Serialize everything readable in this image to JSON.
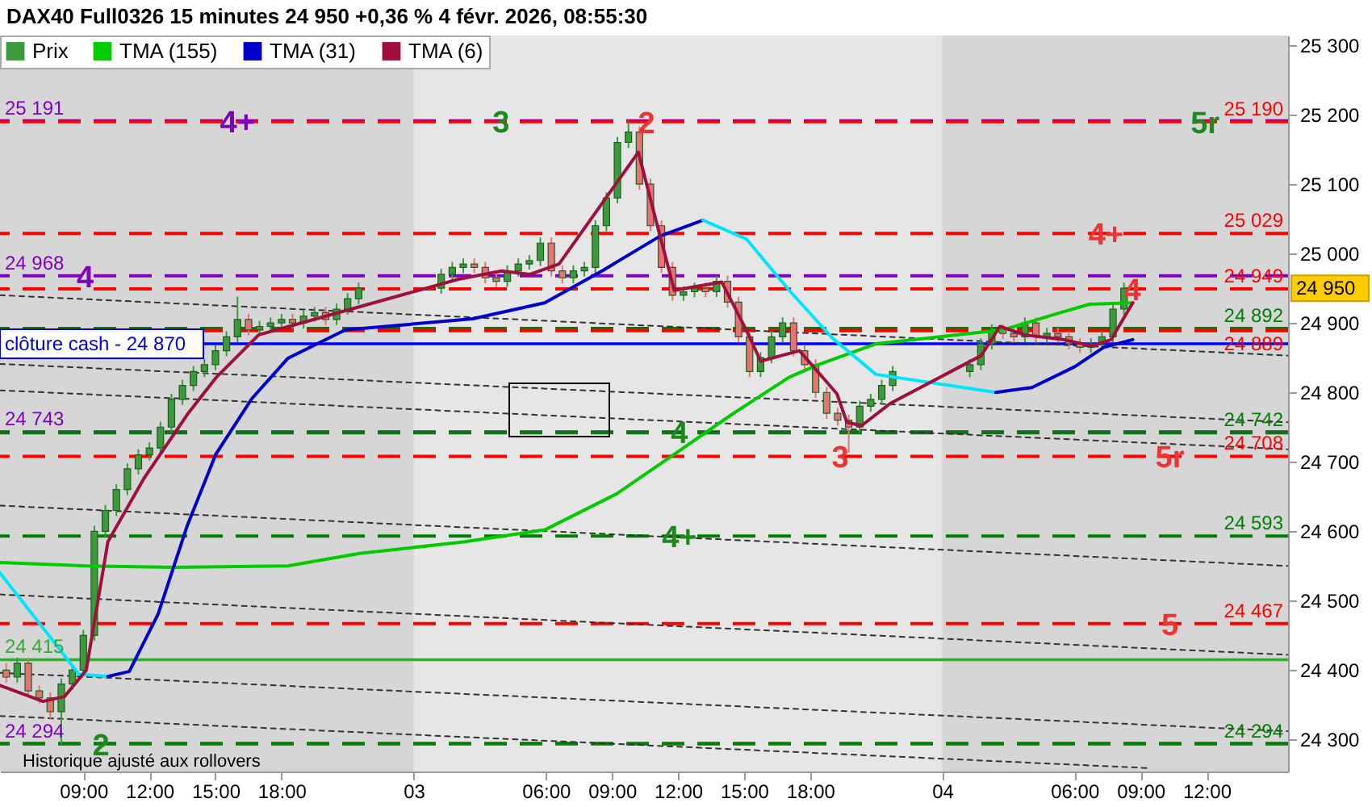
{
  "chart_data": {
    "type": "candlestick",
    "title": "DAX40 Full0326 15 minutes 24 950 +0,36 % 4 févr. 2026, 08:55:30",
    "legend": "top left",
    "xlim": [
      "2026-02-02T05:13",
      "2026-02-04T15:42"
    ],
    "xticks": [
      {
        "value": "2026-02-02T09:00",
        "label": "09:00"
      },
      {
        "value": "2026-02-02T12:00",
        "label": "12:00"
      },
      {
        "value": "2026-02-02T15:00",
        "label": "15:00"
      },
      {
        "value": "2026-02-02T18:00",
        "label": "18:00"
      },
      {
        "value": "2026-02-03",
        "label": "03"
      },
      {
        "value": "2026-02-03T06:00",
        "label": "06:00"
      },
      {
        "value": "2026-02-03T09:00",
        "label": "09:00"
      },
      {
        "value": "2026-02-03T12:00",
        "label": "12:00"
      },
      {
        "value": "2026-02-03T15:00",
        "label": "15:00"
      },
      {
        "value": "2026-02-03T18:00",
        "label": "18:00"
      },
      {
        "value": "2026-02-04",
        "label": "04"
      },
      {
        "value": "2026-02-04T06:00",
        "label": "06:00"
      },
      {
        "value": "2026-02-04T09:00",
        "label": "09:00"
      },
      {
        "value": "2026-02-04T12:00",
        "label": "12:00"
      }
    ],
    "ylim": [
      24254,
      25314
    ],
    "yticks": [
      {
        "value": 24300,
        "label": "24 300"
      },
      {
        "value": 24400,
        "label": "24 400"
      },
      {
        "value": 24500,
        "label": "24 500"
      },
      {
        "value": 24600,
        "label": "24 600"
      },
      {
        "value": 24700,
        "label": "24 700"
      },
      {
        "value": 24800,
        "label": "24 800"
      },
      {
        "value": 24900,
        "label": "24 900"
      },
      {
        "value": 25000,
        "label": "25 000"
      },
      {
        "value": 25100,
        "label": "25 100"
      },
      {
        "value": 25200,
        "label": "25 200"
      },
      {
        "value": 25300,
        "label": "25 300"
      }
    ],
    "bands": [
      {
        "axis": "x",
        "from": "2026-02-03",
        "to": "2026-02-04",
        "color": "#e6e6e6"
      }
    ],
    "series": [
      {
        "name": "Prix",
        "x": [
          "2026-02-02T05:30",
          "2026-02-02T06:00",
          "2026-02-02T06:30",
          "2026-02-02T07:00",
          "2026-02-02T07:30",
          "2026-02-02T08:00",
          "2026-02-02T08:30",
          "2026-02-02T09:00",
          "2026-02-02T09:30",
          "2026-02-02T10:00",
          "2026-02-02T10:30",
          "2026-02-02T11:00",
          "2026-02-02T11:30",
          "2026-02-02T12:00",
          "2026-02-02T12:30",
          "2026-02-02T13:00",
          "2026-02-02T13:30",
          "2026-02-02T14:00",
          "2026-02-02T14:30",
          "2026-02-02T15:00",
          "2026-02-02T15:30",
          "2026-02-02T16:00",
          "2026-02-02T16:30",
          "2026-02-02T17:00",
          "2026-02-02T17:30",
          "2026-02-02T18:00",
          "2026-02-02T18:30",
          "2026-02-02T19:00",
          "2026-02-02T19:30",
          "2026-02-02T20:00",
          "2026-02-02T20:30",
          "2026-02-02T21:00",
          "2026-02-02T21:30",
          "2026-02-03T01:15",
          "2026-02-03T01:45",
          "2026-02-03T02:15",
          "2026-02-03T02:45",
          "2026-02-03T03:15",
          "2026-02-03T03:45",
          "2026-02-03T04:15",
          "2026-02-03T04:45",
          "2026-02-03T05:15",
          "2026-02-03T05:45",
          "2026-02-03T06:15",
          "2026-02-03T06:45",
          "2026-02-03T07:15",
          "2026-02-03T07:45",
          "2026-02-03T08:15",
          "2026-02-03T08:45",
          "2026-02-03T09:15",
          "2026-02-03T09:45",
          "2026-02-03T10:15",
          "2026-02-03T10:45",
          "2026-02-03T11:15",
          "2026-02-03T11:45",
          "2026-02-03T12:15",
          "2026-02-03T12:45",
          "2026-02-03T13:15",
          "2026-02-03T13:45",
          "2026-02-03T14:15",
          "2026-02-03T14:45",
          "2026-02-03T15:15",
          "2026-02-03T15:45",
          "2026-02-03T16:15",
          "2026-02-03T16:45",
          "2026-02-03T17:15",
          "2026-02-03T17:45",
          "2026-02-03T18:15",
          "2026-02-03T18:45",
          "2026-02-03T19:15",
          "2026-02-03T19:45",
          "2026-02-03T20:15",
          "2026-02-03T20:45",
          "2026-02-03T21:15",
          "2026-02-03T21:45",
          "2026-02-04T01:15",
          "2026-02-04T01:45",
          "2026-02-04T02:15",
          "2026-02-04T02:45",
          "2026-02-04T03:15",
          "2026-02-04T03:45",
          "2026-02-04T04:15",
          "2026-02-04T04:45",
          "2026-02-04T05:15",
          "2026-02-04T05:45",
          "2026-02-04T06:15",
          "2026-02-04T06:45",
          "2026-02-04T07:15",
          "2026-02-04T07:45",
          "2026-02-04T08:15"
        ],
        "colors": [
          "#e57373",
          "#3c9a3c",
          "#e57373",
          "#e57373",
          "#e57373",
          "#3c9a3c",
          "#3c9a3c",
          "#3c9a3c",
          "#3c9a3c",
          "#3c9a3c",
          "#3c9a3c",
          "#3c9a3c",
          "#3c9a3c",
          "#3c9a3c",
          "#3c9a3c",
          "#3c9a3c",
          "#3c9a3c",
          "#3c9a3c",
          "#3c9a3c",
          "#3c9a3c",
          "#3c9a3c",
          "#3c9a3c",
          "#e57373",
          "#3c9a3c",
          "#3c9a3c",
          "#3c9a3c",
          "#e57373",
          "#3c9a3c",
          "#3c9a3c",
          "#e57373",
          "#3c9a3c",
          "#3c9a3c",
          "#3c9a3c",
          "#3c9a3c",
          "#3c9a3c",
          "#3c9a3c",
          "#e57373",
          "#e57373",
          "#e57373",
          "#3c9a3c",
          "#3c9a3c",
          "#3c9a3c",
          "#3c9a3c",
          "#e57373",
          "#e57373",
          "#3c9a3c",
          "#3c9a3c",
          "#3c9a3c",
          "#3c9a3c",
          "#3c9a3c",
          "#3c9a3c",
          "#e57373",
          "#e57373",
          "#e57373",
          "#e57373",
          "#3c9a3c",
          "#3c9a3c",
          "#e57373",
          "#3c9a3c",
          "#e57373",
          "#e57373",
          "#e57373",
          "#3c9a3c",
          "#3c9a3c",
          "#3c9a3c",
          "#e57373",
          "#e57373",
          "#e57373",
          "#e57373",
          "#e57373",
          "#e57373",
          "#3c9a3c",
          "#3c9a3c",
          "#3c9a3c",
          "#3c9a3c",
          "#3c9a3c",
          "#3c9a3c",
          "#3c9a3c",
          "#e57373",
          "#e57373",
          "#3c9a3c",
          "#e57373",
          "#3c9a3c",
          "#e57373",
          "#e57373",
          "#e57373",
          "#3c9a3c",
          "#3c9a3c",
          "#3c9a3c",
          "#3c9a3c"
        ],
        "ohlc": [
          [
            24400,
            24410,
            24382,
            24390
          ],
          [
            24390,
            24418,
            24382,
            24410
          ],
          [
            24410,
            24418,
            24362,
            24370
          ],
          [
            24370,
            24378,
            24352,
            24360
          ],
          [
            24360,
            24368,
            24330,
            24340
          ],
          [
            24340,
            24388,
            24293,
            24380
          ],
          [
            24380,
            24408,
            24372,
            24400
          ],
          [
            24400,
            24458,
            24392,
            24450
          ],
          [
            24450,
            24608,
            24442,
            24600
          ],
          [
            24600,
            24638,
            24592,
            24630
          ],
          [
            24630,
            24668,
            24622,
            24660
          ],
          [
            24660,
            24698,
            24652,
            24690
          ],
          [
            24690,
            24718,
            24682,
            24710
          ],
          [
            24710,
            24728,
            24702,
            24720
          ],
          [
            24720,
            24758,
            24712,
            24750
          ],
          [
            24750,
            24798,
            24742,
            24790
          ],
          [
            24790,
            24818,
            24782,
            24810
          ],
          [
            24810,
            24838,
            24802,
            24830
          ],
          [
            24830,
            24848,
            24822,
            24840
          ],
          [
            24840,
            24868,
            24832,
            24860
          ],
          [
            24860,
            24888,
            24852,
            24880
          ],
          [
            24880,
            24938,
            24872,
            24905
          ],
          [
            24905,
            24913,
            24882,
            24890
          ],
          [
            24890,
            24903,
            24882,
            24895
          ],
          [
            24895,
            24908,
            24887,
            24900
          ],
          [
            24900,
            24913,
            24892,
            24905
          ],
          [
            24905,
            24913,
            24892,
            24900
          ],
          [
            24900,
            24918,
            24892,
            24910
          ],
          [
            24910,
            24923,
            24902,
            24915
          ],
          [
            24915,
            24923,
            24897,
            24905
          ],
          [
            24905,
            24928,
            24897,
            24920
          ],
          [
            24920,
            24943,
            24912,
            24935
          ],
          [
            24935,
            24958,
            24927,
            24950
          ],
          [
            24950,
            24978,
            24942,
            24970
          ],
          [
            24970,
            24988,
            24962,
            24980
          ],
          [
            24980,
            24993,
            24972,
            24985
          ],
          [
            24985,
            24993,
            24972,
            24980
          ],
          [
            24980,
            24988,
            24957,
            24965
          ],
          [
            24965,
            24973,
            24952,
            24960
          ],
          [
            24960,
            24983,
            24952,
            24975
          ],
          [
            24975,
            24993,
            24967,
            24985
          ],
          [
            24985,
            24998,
            24977,
            24990
          ],
          [
            24990,
            25023,
            24982,
            25015
          ],
          [
            25015,
            25023,
            24967,
            24975
          ],
          [
            24975,
            24983,
            24957,
            24965
          ],
          [
            24965,
            24983,
            24957,
            24975
          ],
          [
            24975,
            24988,
            24967,
            24980
          ],
          [
            24980,
            25048,
            24972,
            25040
          ],
          [
            25040,
            25088,
            25032,
            25080
          ],
          [
            25080,
            25168,
            25072,
            25160
          ],
          [
            25160,
            25190,
            25152,
            25175
          ],
          [
            25175,
            25183,
            25092,
            25100
          ],
          [
            25100,
            25108,
            25032,
            25040
          ],
          [
            25040,
            25048,
            24972,
            24980
          ],
          [
            24980,
            24988,
            24932,
            24940
          ],
          [
            24940,
            24953,
            24932,
            24945
          ],
          [
            24945,
            24958,
            24937,
            24950
          ],
          [
            24950,
            24958,
            24937,
            24945
          ],
          [
            24945,
            24968,
            24937,
            24960
          ],
          [
            24960,
            24968,
            24922,
            24930
          ],
          [
            24930,
            24938,
            24872,
            24880
          ],
          [
            24880,
            24888,
            24822,
            24830
          ],
          [
            24830,
            24858,
            24822,
            24850
          ],
          [
            24850,
            24888,
            24842,
            24880
          ],
          [
            24880,
            24908,
            24872,
            24900
          ],
          [
            24900,
            24908,
            24852,
            24860
          ],
          [
            24860,
            24868,
            24832,
            24840
          ],
          [
            24840,
            24848,
            24792,
            24800
          ],
          [
            24800,
            24808,
            24762,
            24770
          ],
          [
            24770,
            24778,
            24752,
            24760
          ],
          [
            24760,
            24768,
            24713,
            24750
          ],
          [
            24750,
            24788,
            24742,
            24780
          ],
          [
            24780,
            24798,
            24772,
            24790
          ],
          [
            24790,
            24818,
            24782,
            24810
          ],
          [
            24810,
            24838,
            24802,
            24830
          ],
          [
            24830,
            24848,
            24822,
            24840
          ],
          [
            24840,
            24878,
            24832,
            24870
          ],
          [
            24870,
            24898,
            24862,
            24890
          ],
          [
            24890,
            24898,
            24877,
            24885
          ],
          [
            24885,
            24893,
            24872,
            24880
          ],
          [
            24880,
            24908,
            24872,
            24900
          ],
          [
            24900,
            24908,
            24872,
            24880
          ],
          [
            24880,
            24893,
            24872,
            24885
          ],
          [
            24885,
            24893,
            24872,
            24880
          ],
          [
            24880,
            24888,
            24862,
            24870
          ],
          [
            24870,
            24878,
            24857,
            24865
          ],
          [
            24865,
            24878,
            24857,
            24870
          ],
          [
            24870,
            24888,
            24862,
            24880
          ],
          [
            24880,
            24928,
            24872,
            24920
          ],
          [
            24920,
            24958,
            24912,
            24950
          ]
        ]
      },
      {
        "name": "TMA (155)",
        "type": "line",
        "color": "#00cc00",
        "x": [
          "2026-02-02T05:13",
          "2026-02-02T09:08",
          "2026-02-02T13:03",
          "2026-02-02T18:17",
          "2026-02-02T21:33",
          "2026-02-03T02:20",
          "2026-02-03T05:57",
          "2026-02-03T09:13",
          "2026-02-03T11:50",
          "2026-02-03T14:26",
          "2026-02-03T17:03",
          "2026-02-03T18:22",
          "2026-02-03T20:59",
          "2026-02-04T02:45",
          "2026-02-04T05:22",
          "2026-02-04T06:41",
          "2026-02-04T08:39"
        ],
        "values": [
          24555,
          24550,
          24548,
          24550,
          24568,
          24585,
          24602,
          24654,
          24711,
          24768,
          24822,
          24840,
          24870,
          24890,
          24915,
          24927,
          24929
        ]
      },
      {
        "type": "line",
        "color": "#00e5ff",
        "x": [
          "2026-02-02T05:13",
          "2026-02-02T07:10",
          "2026-02-02T08:48",
          "2026-02-02T10:07"
        ],
        "values": [
          24540,
          24461,
          24394,
          24391
        ]
      },
      {
        "name": "TMA (31)",
        "type": "line",
        "color": "#0000cc",
        "x": [
          "2026-02-02T10:07",
          "2026-02-02T11:05",
          "2026-02-02T12:24",
          "2026-02-02T13:43",
          "2026-02-02T15:01",
          "2026-02-02T16:39",
          "2026-02-02T18:17",
          "2026-02-02T20:54",
          "2026-02-03T02:41",
          "2026-02-03T05:57",
          "2026-02-03T08:33",
          "2026-02-03T11:11",
          "2026-02-03T13:08"
        ],
        "values": [
          24391,
          24398,
          24481,
          24608,
          24711,
          24791,
          24849,
          24890,
          24906,
          24929,
          24975,
          25025,
          25048
        ]
      },
      {
        "type": "line",
        "color": "#00e5ff",
        "x": [
          "2026-02-03T13:08",
          "2026-02-03T15:06",
          "2026-02-03T17:03",
          "2026-02-03T19:01",
          "2026-02-03T20:59",
          "2026-02-04T02:26"
        ],
        "values": [
          25048,
          25021,
          24947,
          24878,
          24826,
          24800
        ]
      },
      {
        "type": "line",
        "color": "#0000cc",
        "x": [
          "2026-02-04T02:26",
          "2026-02-04T04:04",
          "2026-02-04T06:01",
          "2026-02-04T07:20",
          "2026-02-04T08:39"
        ],
        "values": [
          24800,
          24807,
          24837,
          24865,
          24876
        ]
      },
      {
        "name": "TMA (6)",
        "type": "line",
        "color": "#a0103c",
        "x": [
          "2026-02-02T05:13",
          "2026-02-02T07:10",
          "2026-02-02T08:09",
          "2026-02-02T09:08",
          "2026-02-02T10:07",
          "2026-02-02T11:45",
          "2026-02-02T13:43",
          "2026-02-02T15:01",
          "2026-02-02T16:58",
          "2026-02-02T19:35",
          "2026-02-03T02:02",
          "2026-02-03T03:59",
          "2026-02-03T05:17",
          "2026-02-03T06:36",
          "2026-02-03T07:54",
          "2026-02-03T10:12",
          "2026-02-03T10:59",
          "2026-02-03T11:50",
          "2026-02-03T13:59",
          "2026-02-03T15:06",
          "2026-02-03T15:45",
          "2026-02-03T17:31",
          "2026-02-03T19:13",
          "2026-02-03T19:40",
          "2026-02-03T20:20",
          "2026-02-03T21:38",
          "2026-02-04T01:46",
          "2026-02-04T02:37",
          "2026-02-04T03:44",
          "2026-02-04T05:30",
          "2026-02-04T06:49",
          "2026-02-04T07:40",
          "2026-02-04T08:39"
        ],
        "values": [
          24378,
          24355,
          24362,
          24400,
          24585,
          24676,
          24768,
          24821,
          24883,
          24906,
          24963,
          24975,
          24970,
          24985,
          25043,
          25146,
          25050,
          24947,
          24959,
          24890,
          24845,
          24860,
          24798,
          24757,
          24752,
          24784,
          24853,
          24895,
          24883,
          24876,
          24867,
          24876,
          24929
        ]
      },
      {
        "type": "line",
        "color": "#333333",
        "line_style": "dotted",
        "x": [
          "2026-02-02T05:13",
          "2026-02-04T15:42"
        ],
        "values": [
          24940,
          24853
        ]
      },
      {
        "type": "line",
        "color": "#333333",
        "line_style": "dotted",
        "x": [
          "2026-02-02T05:13",
          "2026-02-04T15:42"
        ],
        "values": [
          24841,
          24757
        ]
      },
      {
        "type": "line",
        "color": "#333333",
        "line_style": "dotted",
        "x": [
          "2026-02-02T05:13",
          "2026-02-04T15:42"
        ],
        "values": [
          24803,
          24718
        ]
      },
      {
        "type": "line",
        "color": "#333333",
        "line_style": "dotted",
        "x": [
          "2026-02-02T05:13",
          "2026-02-04T15:42"
        ],
        "values": [
          24637,
          24550
        ]
      },
      {
        "type": "line",
        "color": "#333333",
        "line_style": "dotted",
        "x": [
          "2026-02-02T05:13",
          "2026-02-04T15:42"
        ],
        "values": [
          24509,
          24422
        ]
      },
      {
        "type": "line",
        "color": "#333333",
        "line_style": "dotted",
        "x": [
          "2026-02-02T05:13",
          "2026-02-04T15:42"
        ],
        "values": [
          24396,
          24312
        ]
      },
      {
        "type": "line",
        "color": "#333333",
        "line_style": "dotted",
        "x": [
          "2026-02-02T05:13",
          "2026-02-04T09:18"
        ],
        "values": [
          24334,
          24259
        ]
      }
    ],
    "ref_lines": [
      {
        "axis": "y",
        "value": 25191,
        "label": "25 191",
        "color": "#8000c0",
        "line_style": "dashed"
      },
      {
        "axis": "y",
        "value": 25190,
        "label": "25 190",
        "color": "#ff0000",
        "line_style": "dashed"
      },
      {
        "axis": "y",
        "value": 25029,
        "label": "25 029",
        "color": "#ff0000",
        "line_style": "dashed"
      },
      {
        "axis": "y",
        "value": 24968,
        "label": "24 968",
        "color": "#8000c0",
        "line_style": "dashed"
      },
      {
        "axis": "y",
        "value": 24949,
        "label": "24 949",
        "color": "#ff0000",
        "line_style": "dashed"
      },
      {
        "axis": "y",
        "value": 24892,
        "label": "24 892",
        "color": "#008000",
        "line_style": "dashed"
      },
      {
        "axis": "y",
        "value": 24889,
        "label": "24 889",
        "color": "#ff0000",
        "line_style": "dashed"
      },
      {
        "axis": "y",
        "value": 24870,
        "label": "clôture cash -  24 870",
        "color": "#0000ff",
        "line_style": "solid"
      },
      {
        "axis": "y",
        "value": 24743,
        "label": "24 743",
        "color": "#8000c0",
        "line_style": "dashed"
      },
      {
        "axis": "y",
        "value": 24742,
        "label": "24 742",
        "color": "#008000",
        "line_style": "dashed"
      },
      {
        "axis": "y",
        "value": 24708,
        "label": "24 708",
        "color": "#ff0000",
        "line_style": "dashed"
      },
      {
        "axis": "y",
        "value": 24593,
        "label": "24 593",
        "color": "#008000",
        "line_style": "dashed"
      },
      {
        "axis": "y",
        "value": 24467,
        "label": "24 467",
        "color": "#ff0000",
        "line_style": "dashed"
      },
      {
        "axis": "y",
        "value": 24415,
        "label": "24 415",
        "color": "#33aa33",
        "line_style": "solid"
      },
      {
        "axis": "y",
        "value": 24294,
        "label": "24 294",
        "color": "#8000c0",
        "line_style": "dashed"
      },
      {
        "axis": "y",
        "value": 24294,
        "label": "24 294",
        "color": "#008000",
        "line_style": "dashed"
      }
    ],
    "annotations": [
      "Historique ajusté aux rollovers",
      {
        "text": "4+",
        "x": "2026-02-02T16:00",
        "y": 25191
      },
      {
        "text": "3",
        "x": "2026-02-03T03:58",
        "y": 25191
      },
      {
        "text": "2",
        "x": "2026-02-03T10:34",
        "y": 25190
      },
      {
        "text": "5r",
        "x": "2026-02-04T11:56",
        "y": 25190
      },
      {
        "text": "4+",
        "x": "2026-02-04T07:26",
        "y": 25029
      },
      {
        "text": "4",
        "x": "2026-02-02T09:05",
        "y": 24968
      },
      {
        "text": "4",
        "x": "2026-02-04T08:38",
        "y": 24949
      },
      {
        "text": "4",
        "x": "2026-02-03T12:04",
        "y": 24743
      },
      {
        "text": "3",
        "x": "2026-02-03T19:22",
        "y": 24708
      },
      {
        "text": "5r",
        "x": "2026-02-04T10:20",
        "y": 24708
      },
      {
        "text": "4+",
        "x": "2026-02-03T12:04",
        "y": 24593
      },
      {
        "text": "5",
        "x": "2026-02-04T10:20",
        "y": 24467
      },
      {
        "text": "2",
        "x": "2026-02-02T09:48",
        "y": 24294
      },
      {
        "text": "24 950",
        "x": "2026-02-04T15:42",
        "y": 24950
      }
    ]
  }
}
